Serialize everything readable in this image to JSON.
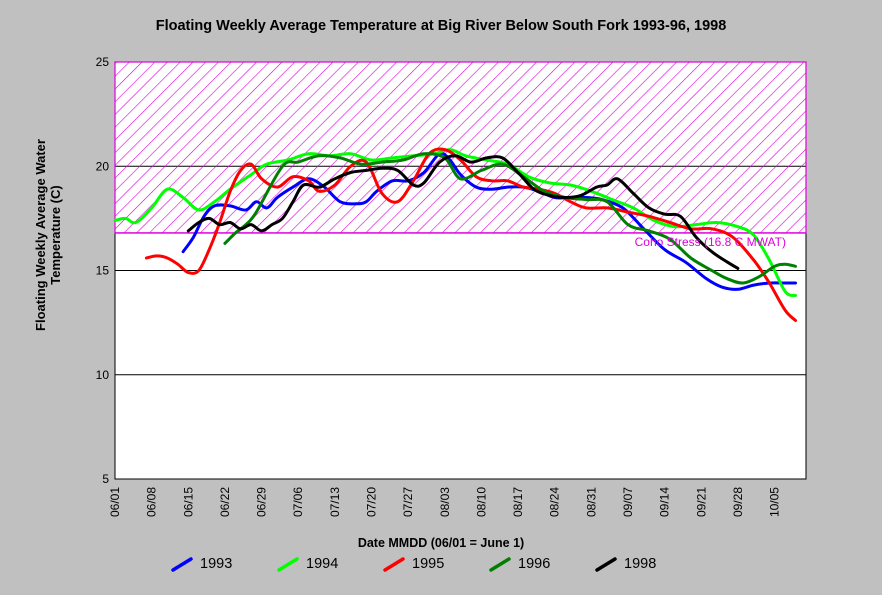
{
  "chart_data": {
    "type": "line",
    "title": "Floating Weekly Average Temperature at Big River Below South Fork 1993-96, 1998",
    "xlabel": "Date MMDD (06/01 = June 1)",
    "ylabel": "Floating Weekly Average Water\nTemperature (C)",
    "ylim": [
      5,
      25
    ],
    "yticks": [
      5,
      10,
      15,
      20,
      25
    ],
    "xlim": [
      "06/01",
      "10/11"
    ],
    "xticks": [
      "06/01",
      "06/08",
      "06/15",
      "06/22",
      "06/29",
      "07/06",
      "07/13",
      "07/20",
      "07/27",
      "08/03",
      "08/10",
      "08/17",
      "08/24",
      "08/31",
      "09/07",
      "09/14",
      "09/21",
      "09/28",
      "10/05"
    ],
    "grid": "horizontal",
    "legend_position": "bottom",
    "threshold": {
      "label": "Coho Stress (16.8 C MWAT)",
      "value": 16.8,
      "shaded_range": [
        16.8,
        25
      ],
      "color": "#dd00dd"
    },
    "series": [
      {
        "name": "1993",
        "color": "#0000ff",
        "x": [
          "06/14",
          "06/16",
          "06/18",
          "06/20",
          "06/23",
          "06/26",
          "06/28",
          "06/30",
          "07/02",
          "07/05",
          "07/08",
          "07/11",
          "07/14",
          "07/17",
          "07/19",
          "07/21",
          "07/24",
          "07/27",
          "07/30",
          "08/02",
          "08/04",
          "08/06",
          "08/09",
          "08/12",
          "08/15",
          "08/18",
          "08/21",
          "08/24",
          "08/27",
          "08/30",
          "09/02",
          "09/06",
          "09/10",
          "09/14",
          "09/18",
          "09/22",
          "09/25",
          "09/28",
          "10/01",
          "10/04",
          "10/07",
          "10/09"
        ],
        "y": [
          15.9,
          16.6,
          17.6,
          18.1,
          18.1,
          17.9,
          18.3,
          18.0,
          18.5,
          19.0,
          19.4,
          19.0,
          18.3,
          18.2,
          18.3,
          18.8,
          19.3,
          19.3,
          19.7,
          20.6,
          20.3,
          19.6,
          19.0,
          18.9,
          19.0,
          19.0,
          18.8,
          18.5,
          18.5,
          18.5,
          18.4,
          18.0,
          17.0,
          16.0,
          15.4,
          14.6,
          14.2,
          14.1,
          14.3,
          14.4,
          14.4,
          14.4
        ]
      },
      {
        "name": "1994",
        "color": "#00ff00",
        "x": [
          "06/01",
          "06/03",
          "06/05",
          "06/08",
          "06/11",
          "06/14",
          "06/17",
          "06/20",
          "06/23",
          "06/27",
          "06/30",
          "07/04",
          "07/08",
          "07/12",
          "07/16",
          "07/20",
          "07/24",
          "07/28",
          "08/01",
          "08/04",
          "08/07",
          "08/11",
          "08/15",
          "08/19",
          "08/23",
          "08/27",
          "08/31",
          "09/04",
          "09/08",
          "09/12",
          "09/16",
          "09/20",
          "09/24",
          "09/28",
          "10/01",
          "10/04",
          "10/07",
          "10/09"
        ],
        "y": [
          17.4,
          17.5,
          17.3,
          18.0,
          18.9,
          18.5,
          17.9,
          18.3,
          18.9,
          19.6,
          20.1,
          20.3,
          20.6,
          20.5,
          20.6,
          20.3,
          20.4,
          20.5,
          20.6,
          20.8,
          20.5,
          20.3,
          20.1,
          19.5,
          19.2,
          19.1,
          18.8,
          18.4,
          18.0,
          17.4,
          17.1,
          17.2,
          17.3,
          17.1,
          16.7,
          15.5,
          14.0,
          13.8
        ]
      },
      {
        "name": "1995",
        "color": "#ff0000",
        "x": [
          "06/07",
          "06/09",
          "06/11",
          "06/13",
          "06/15",
          "06/17",
          "06/19",
          "06/21",
          "06/23",
          "06/25",
          "06/27",
          "06/29",
          "07/02",
          "07/05",
          "07/08",
          "07/10",
          "07/13",
          "07/16",
          "07/19",
          "07/22",
          "07/25",
          "07/28",
          "07/31",
          "08/03",
          "08/06",
          "08/09",
          "08/12",
          "08/15",
          "08/18",
          "08/21",
          "08/24",
          "08/27",
          "08/30",
          "09/03",
          "09/07",
          "09/11",
          "09/15",
          "09/19",
          "09/23",
          "09/27",
          "10/01",
          "10/04",
          "10/07",
          "10/09"
        ],
        "y": [
          15.6,
          15.7,
          15.6,
          15.3,
          14.9,
          15.0,
          16.0,
          17.3,
          18.8,
          19.8,
          20.1,
          19.4,
          19.0,
          19.5,
          19.3,
          18.8,
          19.1,
          20.0,
          20.2,
          18.7,
          18.3,
          19.3,
          20.6,
          20.8,
          20.3,
          19.5,
          19.3,
          19.3,
          19.0,
          18.9,
          18.7,
          18.3,
          18.0,
          18.0,
          17.8,
          17.6,
          17.3,
          17.0,
          17.0,
          16.6,
          15.5,
          14.4,
          13.1,
          12.6
        ]
      },
      {
        "name": "1996",
        "color": "#008000",
        "x": [
          "06/22",
          "06/24",
          "06/26",
          "06/28",
          "07/03",
          "07/06",
          "07/10",
          "07/14",
          "07/18",
          "07/22",
          "07/26",
          "07/30",
          "08/03",
          "08/06",
          "08/10",
          "08/14",
          "08/18",
          "08/22",
          "08/26",
          "08/30",
          "09/03",
          "09/07",
          "09/11",
          "09/15",
          "09/19",
          "09/23",
          "09/26",
          "09/29",
          "10/02",
          "10/05",
          "10/07",
          "10/09"
        ],
        "y": [
          16.3,
          16.8,
          17.2,
          17.8,
          20.0,
          20.2,
          20.5,
          20.4,
          20.1,
          20.2,
          20.3,
          20.6,
          20.4,
          19.4,
          19.8,
          20.1,
          19.5,
          18.8,
          18.5,
          18.4,
          18.3,
          17.2,
          16.9,
          16.5,
          15.6,
          15.0,
          14.6,
          14.4,
          14.7,
          15.2,
          15.3,
          15.2
        ]
      },
      {
        "name": "1998",
        "color": "#000000",
        "x": [
          "06/15",
          "06/17",
          "06/19",
          "06/21",
          "06/23",
          "06/25",
          "06/27",
          "06/29",
          "07/01",
          "07/03",
          "07/05",
          "07/07",
          "07/10",
          "07/13",
          "07/16",
          "07/19",
          "07/22",
          "07/25",
          "07/28",
          "07/30",
          "08/02",
          "08/05",
          "08/08",
          "08/11",
          "08/14",
          "08/17",
          "08/20",
          "08/23",
          "08/26",
          "08/29",
          "09/01",
          "09/03",
          "09/05",
          "09/08",
          "09/11",
          "09/14",
          "09/17",
          "09/20",
          "09/23",
          "09/26",
          "09/28"
        ],
        "y": [
          16.9,
          17.3,
          17.5,
          17.2,
          17.3,
          17.0,
          17.2,
          16.9,
          17.2,
          17.5,
          18.3,
          19.1,
          19.0,
          19.4,
          19.7,
          19.8,
          19.9,
          19.8,
          19.1,
          19.2,
          20.2,
          20.5,
          20.2,
          20.4,
          20.4,
          19.7,
          18.9,
          18.6,
          18.5,
          18.6,
          19.0,
          19.1,
          19.4,
          18.7,
          18.0,
          17.7,
          17.6,
          16.6,
          15.9,
          15.4,
          15.1
        ]
      }
    ]
  }
}
